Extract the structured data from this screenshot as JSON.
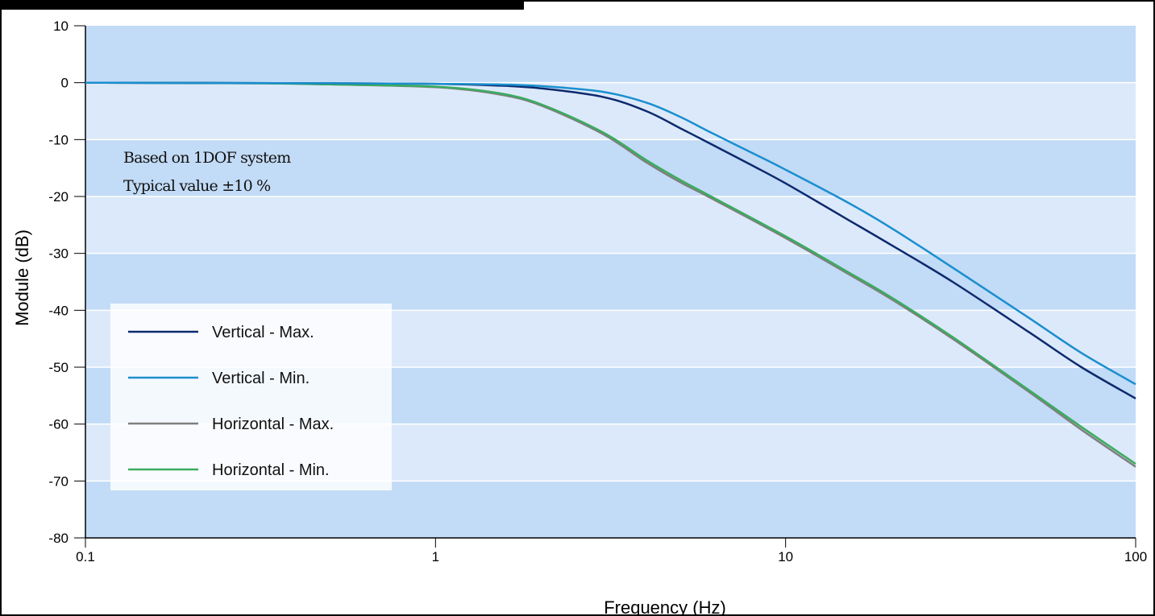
{
  "chart_data": {
    "type": "line",
    "xlabel": "Frequency (Hz)",
    "ylabel": "Module (dB)",
    "x_scale": "log",
    "xlim": [
      0.1,
      100
    ],
    "ylim": [
      -80,
      10
    ],
    "x_ticks": [
      "0.1",
      "1",
      "10",
      "100"
    ],
    "y_ticks": [
      "10",
      "0",
      "-10",
      "-20",
      "-30",
      "-40",
      "-50",
      "-60",
      "-70",
      "-80"
    ],
    "grid": true,
    "background_bands": [
      "#c2dbf6",
      "#dce9fa"
    ],
    "annotations": [
      "Based on 1DOF system",
      "Typical value ±10 %"
    ],
    "legend_position": "left",
    "series": [
      {
        "name": "Vertical - Max.",
        "color": "#0d2a6e",
        "points": [
          [
            0.1,
            0
          ],
          [
            0.5,
            -0.1
          ],
          [
            1,
            -0.2
          ],
          [
            1.5,
            -0.5
          ],
          [
            2,
            -1
          ],
          [
            3,
            -2.5
          ],
          [
            4,
            -5
          ],
          [
            5,
            -8
          ],
          [
            6,
            -10.5
          ],
          [
            8,
            -14.5
          ],
          [
            10,
            -17.7
          ],
          [
            15,
            -24
          ],
          [
            20,
            -28.5
          ],
          [
            30,
            -35
          ],
          [
            50,
            -44
          ],
          [
            70,
            -50
          ],
          [
            100,
            -55.5
          ]
        ]
      },
      {
        "name": "Vertical - Min.",
        "color": "#1a8fce",
        "points": [
          [
            0.1,
            0
          ],
          [
            0.5,
            -0.1
          ],
          [
            1,
            -0.2
          ],
          [
            1.5,
            -0.3
          ],
          [
            2,
            -0.6
          ],
          [
            3,
            -1.6
          ],
          [
            4,
            -3.5
          ],
          [
            5,
            -6
          ],
          [
            6,
            -8.5
          ],
          [
            8,
            -12.3
          ],
          [
            10,
            -15.3
          ],
          [
            15,
            -21
          ],
          [
            20,
            -25.5
          ],
          [
            30,
            -32.5
          ],
          [
            50,
            -41.5
          ],
          [
            70,
            -47.5
          ],
          [
            100,
            -53
          ]
        ]
      },
      {
        "name": "Horizontal - Max.",
        "color": "#7f7f7f",
        "points": [
          [
            0.1,
            0
          ],
          [
            0.3,
            -0.1
          ],
          [
            0.5,
            -0.3
          ],
          [
            1,
            -0.8
          ],
          [
            1.5,
            -2
          ],
          [
            2,
            -4
          ],
          [
            3,
            -9
          ],
          [
            4,
            -14
          ],
          [
            5,
            -17.5
          ],
          [
            6,
            -20
          ],
          [
            10,
            -27.3
          ],
          [
            15,
            -33.5
          ],
          [
            20,
            -38
          ],
          [
            30,
            -45
          ],
          [
            50,
            -54.5
          ],
          [
            70,
            -61
          ],
          [
            100,
            -67.5
          ]
        ]
      },
      {
        "name": "Horizontal - Min.",
        "color": "#3aac5e",
        "points": [
          [
            0.1,
            0
          ],
          [
            0.3,
            -0.1
          ],
          [
            0.5,
            -0.3
          ],
          [
            1,
            -0.7
          ],
          [
            1.5,
            -1.8
          ],
          [
            2,
            -3.8
          ],
          [
            3,
            -8.7
          ],
          [
            4,
            -13.6
          ],
          [
            5,
            -17.1
          ],
          [
            6,
            -19.7
          ],
          [
            10,
            -27
          ],
          [
            15,
            -33.2
          ],
          [
            20,
            -37.7
          ],
          [
            30,
            -44.7
          ],
          [
            50,
            -54.2
          ],
          [
            70,
            -60.5
          ],
          [
            100,
            -67
          ]
        ]
      }
    ]
  }
}
